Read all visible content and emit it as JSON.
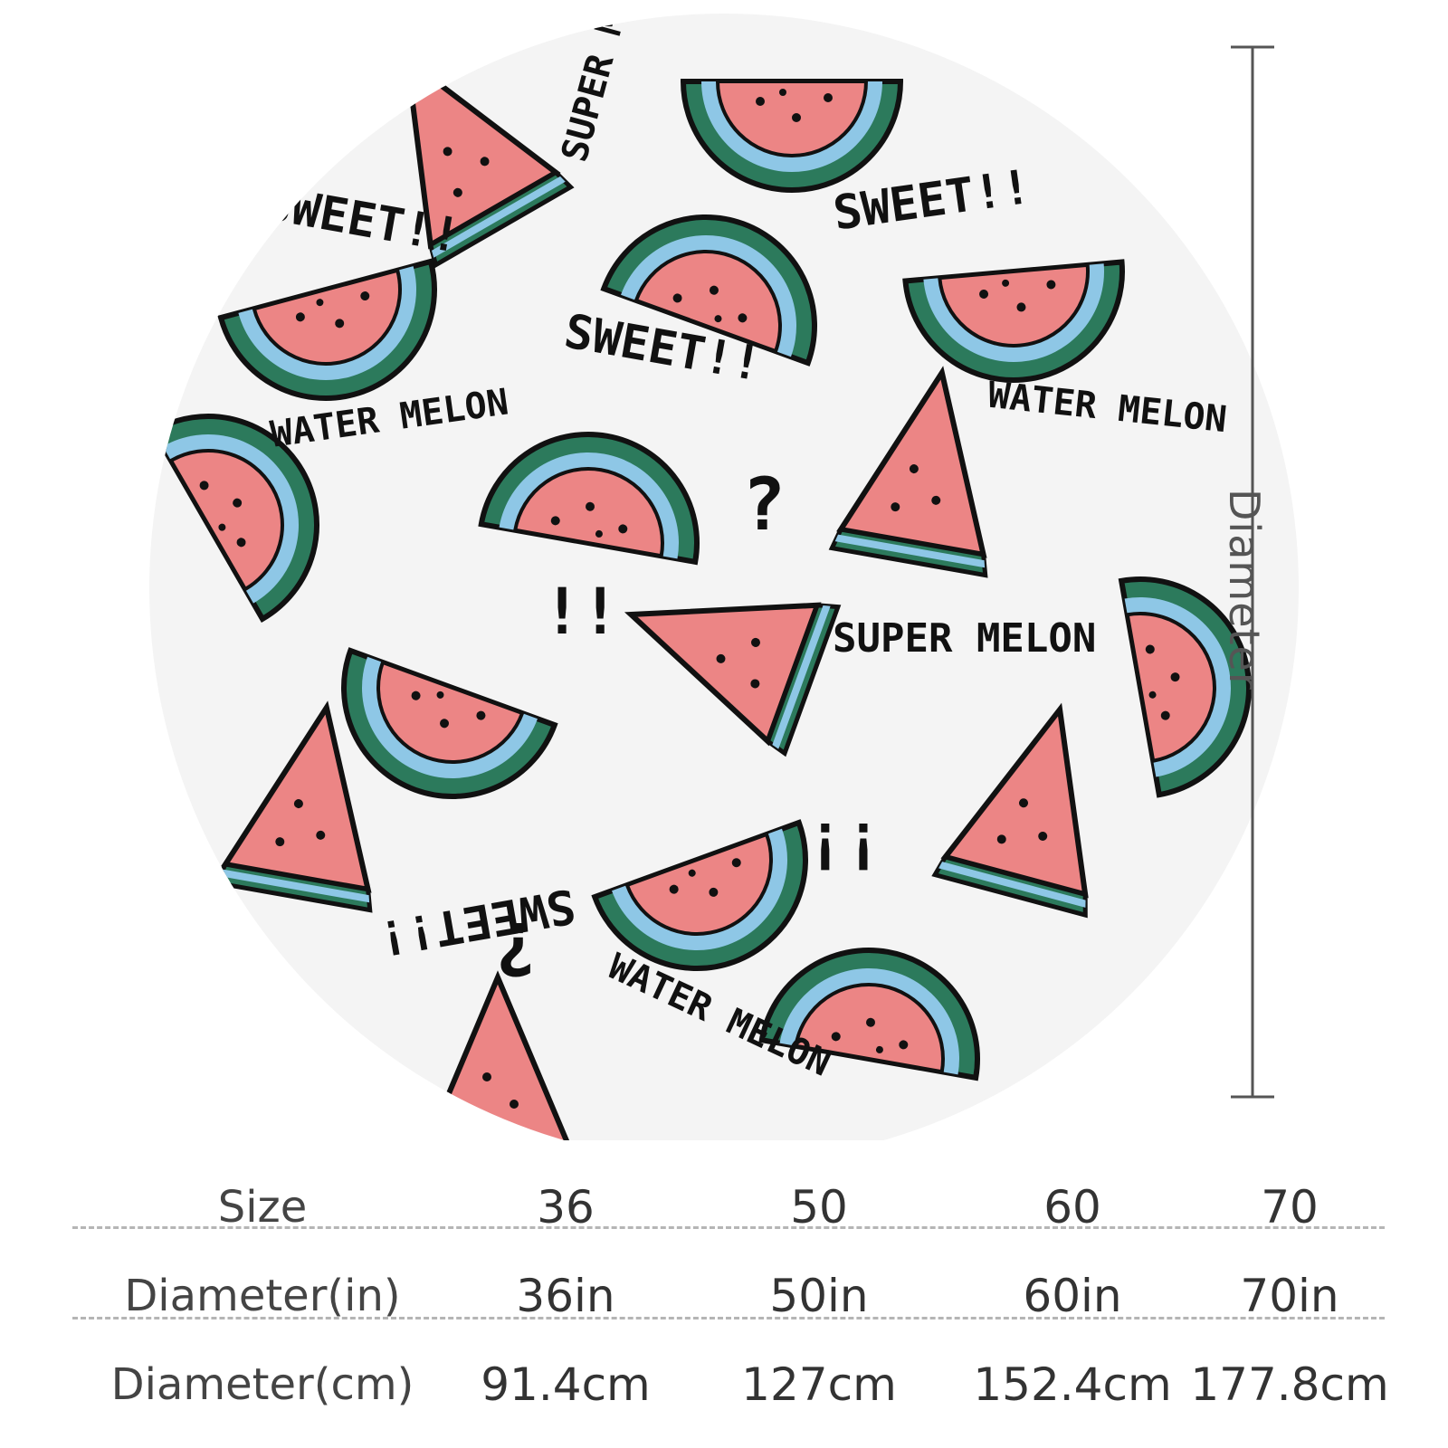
{
  "rug": {
    "background_color": "#f4f4f4",
    "colors": {
      "flesh": "#ec8585",
      "rind_dark": "#2c7a5c",
      "rind_light": "#8ec7e6",
      "outline": "#111111"
    },
    "texts": [
      "SWEET!!",
      "SUPER MELON",
      "WATER MELON"
    ],
    "dimension_label": "Diameter"
  },
  "table": {
    "header": {
      "label": "Size",
      "values": [
        "36",
        "50",
        "60",
        "70"
      ]
    },
    "rows": [
      {
        "label": "Diameter(in)",
        "values": [
          "36in",
          "50in",
          "60in",
          "70in"
        ]
      },
      {
        "label": "Diameter(cm)",
        "values": [
          "91.4cm",
          "127cm",
          "152.4cm",
          "177.8cm"
        ]
      }
    ]
  }
}
